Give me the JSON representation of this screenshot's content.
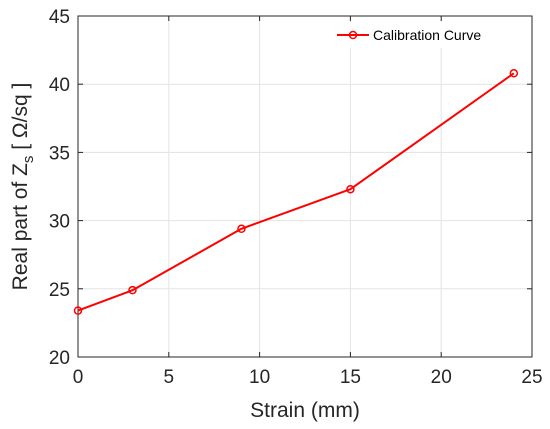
{
  "chart_data": {
    "type": "line",
    "title": "",
    "xlabel": "Strain (mm)",
    "ylabel": {
      "prefix": "Real part of Z",
      "subscript": "s",
      "unit": " [ Ω/sq ]"
    },
    "xlim": [
      0,
      25
    ],
    "ylim": [
      20,
      45
    ],
    "xticks": [
      0,
      5,
      10,
      15,
      20,
      25
    ],
    "yticks": [
      20,
      25,
      30,
      35,
      40,
      45
    ],
    "grid": true,
    "legend_position": "top-right",
    "series": [
      {
        "name": "Calibration Curve",
        "color": "#ff0000",
        "marker": "circle",
        "x": [
          0,
          3,
          9,
          15,
          24
        ],
        "y": [
          23.4,
          24.9,
          29.4,
          32.3,
          40.8
        ]
      }
    ]
  }
}
